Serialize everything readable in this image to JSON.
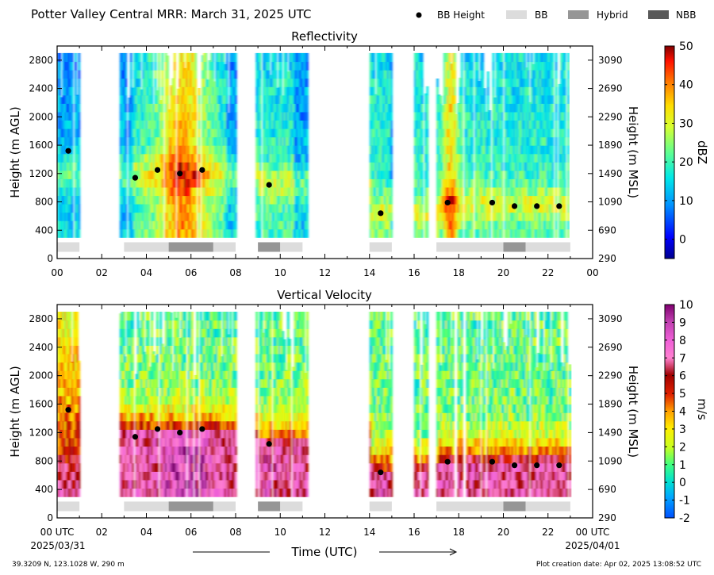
{
  "header": {
    "title": "Potter Valley Central MRR:  March 31, 2025 UTC",
    "legend": [
      {
        "label": "BB Height",
        "kind": "dot",
        "color": "#000000"
      },
      {
        "label": "BB",
        "kind": "box",
        "color": "#dcdcdc"
      },
      {
        "label": "Hybrid",
        "kind": "box",
        "color": "#969696"
      },
      {
        "label": "NBB",
        "kind": "box",
        "color": "#595959"
      }
    ]
  },
  "chart_data": [
    {
      "type": "heatmap",
      "title": "Reflectivity",
      "xlabel": "",
      "ylabel": "Height (m AGL)",
      "y2label": "Height (m MSL)",
      "xlim": [
        0,
        24
      ],
      "ylim": [
        0,
        3000
      ],
      "x_ticks": [
        "00",
        "02",
        "04",
        "06",
        "08",
        "10",
        "12",
        "14",
        "16",
        "18",
        "20",
        "22",
        "00"
      ],
      "y_ticks": [
        0,
        400,
        800,
        1200,
        1600,
        2000,
        2400,
        2800
      ],
      "y2_ticks": [
        290,
        690,
        1090,
        1490,
        1890,
        2290,
        2690,
        3090
      ],
      "colorbar": {
        "label": "dBZ",
        "min": -5,
        "max": 50,
        "ticks": [
          0,
          10,
          20,
          30,
          40,
          50
        ]
      },
      "bb_height_points": [
        [
          0.5,
          1520
        ],
        [
          3.5,
          1140
        ],
        [
          4.5,
          1250
        ],
        [
          5.5,
          1200
        ],
        [
          6.5,
          1250
        ],
        [
          9.5,
          1040
        ],
        [
          14.5,
          640
        ],
        [
          17.5,
          790
        ],
        [
          19.5,
          790
        ],
        [
          20.5,
          740
        ],
        [
          21.5,
          740
        ],
        [
          22.5,
          740
        ]
      ],
      "band_segments": [
        {
          "start": 0.0,
          "end": 1.0,
          "type": "BB"
        },
        {
          "start": 3.0,
          "end": 5.0,
          "type": "BB"
        },
        {
          "start": 5.0,
          "end": 7.0,
          "type": "Hybrid"
        },
        {
          "start": 7.0,
          "end": 8.0,
          "type": "BB"
        },
        {
          "start": 9.0,
          "end": 10.0,
          "type": "Hybrid"
        },
        {
          "start": 10.0,
          "end": 11.0,
          "type": "BB"
        },
        {
          "start": 14.0,
          "end": 15.0,
          "type": "BB"
        },
        {
          "start": 17.0,
          "end": 20.0,
          "type": "BB"
        },
        {
          "start": 20.0,
          "end": 21.0,
          "type": "Hybrid"
        },
        {
          "start": 21.0,
          "end": 23.0,
          "type": "BB"
        }
      ]
    },
    {
      "type": "heatmap",
      "title": "Vertical Velocity",
      "xlabel": "Time (UTC)",
      "ylabel": "Height (m AGL)",
      "y2label": "Height (m MSL)",
      "xlim": [
        0,
        24
      ],
      "ylim": [
        0,
        3000
      ],
      "x_ticks": [
        "00 UTC",
        "02",
        "04",
        "06",
        "08",
        "10",
        "12",
        "14",
        "16",
        "18",
        "20",
        "22",
        "00 UTC"
      ],
      "x_date_start": "2025/03/31",
      "x_date_end": "2025/04/01",
      "y_ticks": [
        0,
        400,
        800,
        1200,
        1600,
        2000,
        2400,
        2800
      ],
      "y2_ticks": [
        290,
        690,
        1090,
        1490,
        1890,
        2290,
        2690,
        3090
      ],
      "colorbar": {
        "label": "m/s",
        "min": -2,
        "max": 10,
        "ticks": [
          -2,
          -1,
          0,
          1,
          2,
          3,
          4,
          5,
          6,
          7,
          8,
          9,
          10
        ]
      },
      "bb_height_points": [
        [
          0.5,
          1520
        ],
        [
          3.5,
          1140
        ],
        [
          4.5,
          1250
        ],
        [
          5.5,
          1200
        ],
        [
          6.5,
          1250
        ],
        [
          9.5,
          1040
        ],
        [
          14.5,
          640
        ],
        [
          17.5,
          790
        ],
        [
          19.5,
          790
        ],
        [
          20.5,
          740
        ],
        [
          21.5,
          740
        ],
        [
          22.5,
          740
        ]
      ],
      "band_segments": [
        {
          "start": 0.0,
          "end": 1.0,
          "type": "BB"
        },
        {
          "start": 3.0,
          "end": 5.0,
          "type": "BB"
        },
        {
          "start": 5.0,
          "end": 7.0,
          "type": "Hybrid"
        },
        {
          "start": 7.0,
          "end": 8.0,
          "type": "BB"
        },
        {
          "start": 9.0,
          "end": 10.0,
          "type": "Hybrid"
        },
        {
          "start": 10.0,
          "end": 11.0,
          "type": "BB"
        },
        {
          "start": 14.0,
          "end": 15.0,
          "type": "BB"
        },
        {
          "start": 17.0,
          "end": 20.0,
          "type": "BB"
        },
        {
          "start": 20.0,
          "end": 21.0,
          "type": "Hybrid"
        },
        {
          "start": 21.0,
          "end": 23.0,
          "type": "BB"
        }
      ]
    }
  ],
  "precip_periods": [
    [
      0.0,
      1.0
    ],
    [
      2.8,
      8.0
    ],
    [
      8.9,
      11.2
    ],
    [
      14.0,
      15.0
    ],
    [
      16.0,
      16.6
    ],
    [
      17.0,
      23.0
    ]
  ],
  "footer": {
    "location": "39.3209 N, 123.1028 W, 290 m",
    "creation": "Plot creation date: Apr 02, 2025 13:08:52 UTC"
  }
}
